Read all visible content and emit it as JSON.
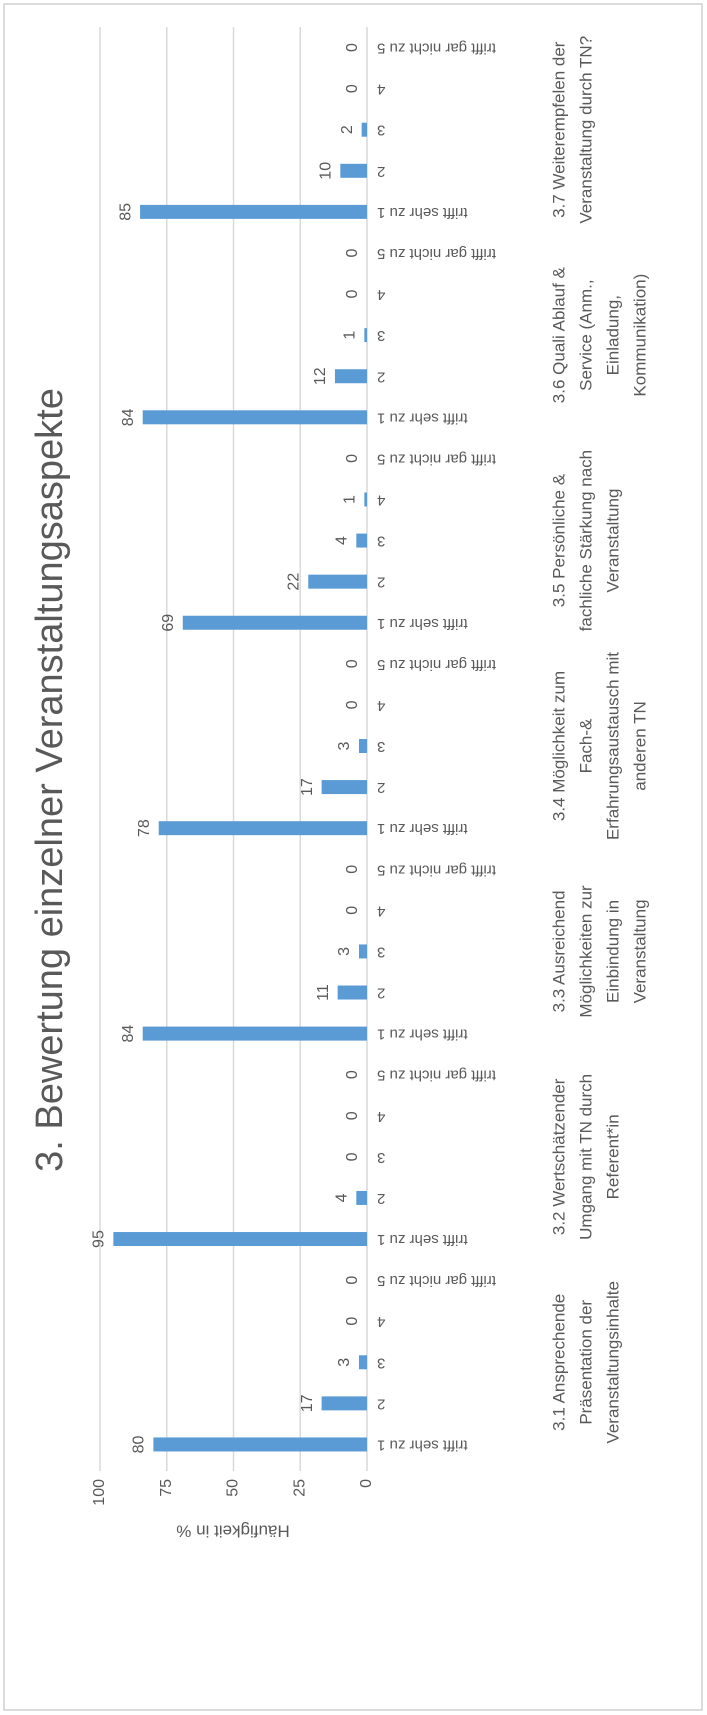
{
  "chart_data": {
    "type": "bar",
    "title": "3. Bewertung einzelner Veranstaltungsaspekte",
    "y_label": "Häufigkeit in %",
    "groups": [
      [
        "3.1 Ansprechende",
        "Präsentation der",
        "Veranstaltungsinhalte"
      ],
      [
        "3.2 Wertschätzender",
        "Umgang mit TN durch",
        "Referent*in"
      ],
      [
        "3.3 Ausreichend",
        "Möglichkeiten zur",
        "Einbindung in",
        "Veranstaltung"
      ],
      [
        "3.4 Möglichkeit zum",
        "Fach-&",
        "Erfahrungsaustausch mit",
        "anderen TN"
      ],
      [
        "3.5 Persönliche &",
        "fachliche Stärkung nach",
        "Veranstaltung"
      ],
      [
        "3.6 Quali Ablauf &",
        "Service (Anm.,",
        "Einladung,",
        "Kommunikation)"
      ],
      [
        "3.7 Weiterempfelen der",
        "Veranstaltung durch TN?"
      ]
    ],
    "categories": [
      "trifft sehr zu 1",
      "2",
      "3",
      "4",
      "trifft gar nicht zu 5",
      "trifft sehr zu 1",
      "2",
      "3",
      "4",
      "trifft gar nicht zu 5",
      "trifft sehr zu 1",
      "2",
      "3",
      "4",
      "trifft gar nicht zu 5",
      "trifft sehr zu 1",
      "2",
      "3",
      "4",
      "trifft gar nicht zu 5",
      "trifft sehr zu 1",
      "2",
      "3",
      "4",
      "trifft gar nicht zu 5",
      "trifft sehr zu 1",
      "2",
      "3",
      "4",
      "trifft gar nicht zu 5",
      "trifft sehr zu 1",
      "2",
      "3",
      "4",
      "trifft gar nicht zu 5"
    ],
    "values": [
      80,
      17,
      3,
      0,
      0,
      95,
      4,
      0,
      0,
      0,
      84,
      11,
      3,
      0,
      0,
      78,
      17,
      3,
      0,
      0,
      69,
      22,
      4,
      1,
      0,
      84,
      12,
      1,
      0,
      0,
      85,
      10,
      2,
      0,
      0
    ],
    "color": "#5b9bd5",
    "ylim": [
      0,
      100
    ],
    "yticks": [
      0,
      25,
      50,
      75,
      100
    ],
    "grid": true
  }
}
